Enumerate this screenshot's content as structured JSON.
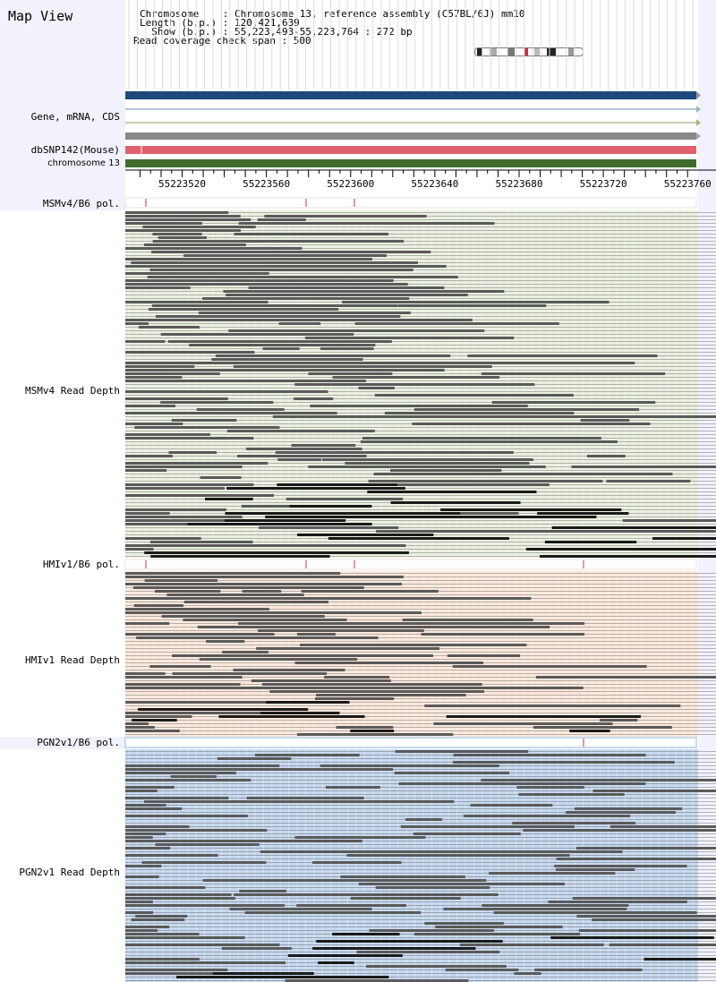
{
  "title": "Map View",
  "info": {
    "chromosome_line": "Chromosome    : Chromosome 13, reference assembly (C57BL/6J) mm10",
    "length_line": "Length (b.p.) : 120,421,639",
    "show_line": "  Show (b.p.) : 55,223,493-55,223,764 : 272 bp",
    "coverage_line": "Read coverage check span : 500"
  },
  "labels": {
    "gene": "Gene, mRNA, CDS",
    "dbsnp": "dbSNP142(Mouse)",
    "chromosome": "chromosome 13",
    "msm_pol": "MSMv4/B6 pol.",
    "msm_depth": "MSMv4 Read Depth",
    "hmi_pol": "HMIv1/B6 pol.",
    "hmi_depth": "HMIv1 Read Depth",
    "pgn_pol": "PGN2v1/B6 pol.",
    "pgn_depth": "PGN2v1 Read Depth"
  },
  "ruler": {
    "range_start": 55223493,
    "range_end": 55223764,
    "ticks": [
      "55223520",
      "55223560",
      "55223600",
      "55223640",
      "55223680",
      "55223720",
      "55223760"
    ]
  },
  "colors": {
    "gene_bar": "#1f497d",
    "dbsnp_bar": "#e0606e",
    "chromosome_bar": "#3f6b2b",
    "msm_bg": "#eaf0e0",
    "hmi_bg": "#fbe8dc",
    "pgn_bg": "#c5d8ee",
    "read": "#5a5a5a",
    "read_dark": "#1a1a1a",
    "snp_mark": "#c03040"
  }
}
